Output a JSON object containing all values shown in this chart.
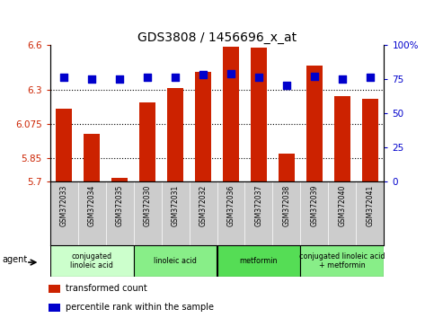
{
  "title": "GDS3808 / 1456696_x_at",
  "samples": [
    "GSM372033",
    "GSM372034",
    "GSM372035",
    "GSM372030",
    "GSM372031",
    "GSM372032",
    "GSM372036",
    "GSM372037",
    "GSM372038",
    "GSM372039",
    "GSM372040",
    "GSM372041"
  ],
  "red_values": [
    6.175,
    6.01,
    5.72,
    6.22,
    6.315,
    6.42,
    6.585,
    6.58,
    5.88,
    6.46,
    6.26,
    6.245
  ],
  "blue_values": [
    76,
    75,
    75,
    76,
    76,
    78,
    79,
    76,
    70,
    77,
    75,
    76
  ],
  "ylim_left": [
    5.7,
    6.6
  ],
  "ylim_right": [
    0,
    100
  ],
  "yticks_left": [
    5.7,
    5.85,
    6.075,
    6.3,
    6.6
  ],
  "yticks_right": [
    0,
    25,
    50,
    75,
    100
  ],
  "hlines": [
    5.85,
    6.075,
    6.3
  ],
  "bar_color": "#cc2200",
  "dot_color": "#0000cc",
  "groups": [
    {
      "label": "conjugated\nlinoleic acid",
      "start": 0,
      "end": 3,
      "color": "#ccffcc"
    },
    {
      "label": "linoleic acid",
      "start": 3,
      "end": 6,
      "color": "#88ee88"
    },
    {
      "label": "metformin",
      "start": 6,
      "end": 9,
      "color": "#55dd55"
    },
    {
      "label": "conjugated linoleic acid\n+ metformin",
      "start": 9,
      "end": 12,
      "color": "#88ee88"
    }
  ],
  "agent_label": "agent",
  "legend_items": [
    {
      "label": "transformed count",
      "color": "#cc2200"
    },
    {
      "label": "percentile rank within the sample",
      "color": "#0000cc"
    }
  ],
  "bar_width": 0.6,
  "dot_size": 30,
  "background_color": "#ffffff",
  "sample_bg": "#cccccc",
  "title_fontsize": 10,
  "tick_fontsize": 7,
  "n": 12
}
